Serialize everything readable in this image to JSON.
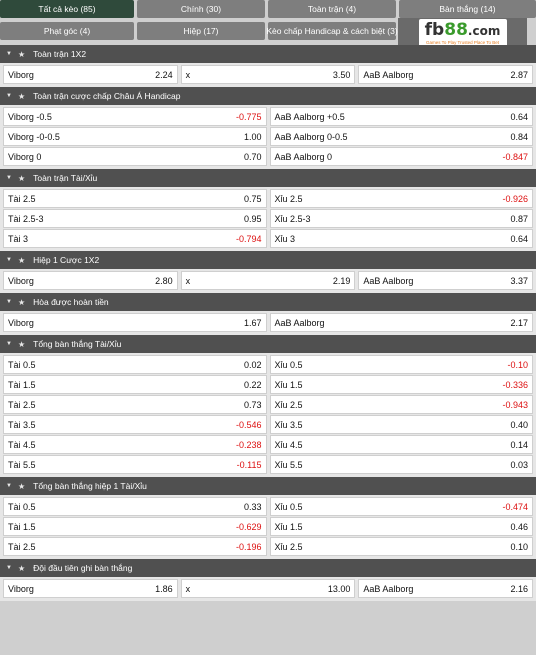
{
  "tabs": [
    {
      "label": "Tất cả kèo (85)",
      "active": true
    },
    {
      "label": "Chính (30)"
    },
    {
      "label": "Toàn trận (4)"
    },
    {
      "label": "Bàn thắng (14)"
    },
    {
      "label": "Phạt góc (4)"
    },
    {
      "label": "Hiệp (17)"
    },
    {
      "label": "Kèo chấp Handicap & cách biệt (3)"
    }
  ],
  "logo": {
    "prefix": "fb",
    "number": "88",
    "domain": ".com",
    "tagline": "Games To Play  Trusted Place To Bet",
    "accent": "#3a9b2c"
  },
  "colors": {
    "negative": "#dd1111",
    "header": "#505050",
    "active_tab": "#2f4a3b",
    "tab": "#7e7e7e"
  },
  "sections": [
    {
      "title": "Toàn trận 1X2",
      "rows": [
        [
          [
            "Viborg",
            "2.24"
          ],
          [
            "x",
            "3.50"
          ],
          [
            "AaB Aalborg",
            "2.87"
          ]
        ]
      ]
    },
    {
      "title": "Toàn trận cược chấp Châu Á Handicap",
      "rows": [
        [
          [
            "Viborg -0.5",
            "-0.775"
          ],
          [
            "AaB Aalborg +0.5",
            "0.64"
          ]
        ],
        [
          [
            "Viborg -0-0.5",
            "1.00"
          ],
          [
            "AaB Aalborg 0-0.5",
            "0.84"
          ]
        ],
        [
          [
            "Viborg 0",
            "0.70"
          ],
          [
            "AaB Aalborg 0",
            "-0.847"
          ]
        ]
      ]
    },
    {
      "title": "Toàn trận Tài/Xỉu",
      "rows": [
        [
          [
            "Tài 2.5",
            "0.75"
          ],
          [
            "Xỉu 2.5",
            "-0.926"
          ]
        ],
        [
          [
            "Tài 2.5-3",
            "0.95"
          ],
          [
            "Xỉu 2.5-3",
            "0.87"
          ]
        ],
        [
          [
            "Tài 3",
            "-0.794"
          ],
          [
            "Xỉu 3",
            "0.64"
          ]
        ]
      ]
    },
    {
      "title": "Hiệp 1 Cược 1X2",
      "rows": [
        [
          [
            "Viborg",
            "2.80"
          ],
          [
            "x",
            "2.19"
          ],
          [
            "AaB Aalborg",
            "3.37"
          ]
        ]
      ]
    },
    {
      "title": "Hòa được hoàn tiền",
      "rows": [
        [
          [
            "Viborg",
            "1.67"
          ],
          [
            "AaB Aalborg",
            "2.17"
          ]
        ]
      ]
    },
    {
      "title": "Tổng bàn thắng Tài/Xỉu",
      "rows": [
        [
          [
            "Tài 0.5",
            "0.02"
          ],
          [
            "Xỉu 0.5",
            "-0.10"
          ]
        ],
        [
          [
            "Tài 1.5",
            "0.22"
          ],
          [
            "Xỉu 1.5",
            "-0.336"
          ]
        ],
        [
          [
            "Tài 2.5",
            "0.73"
          ],
          [
            "Xỉu 2.5",
            "-0.943"
          ]
        ],
        [
          [
            "Tài 3.5",
            "-0.546"
          ],
          [
            "Xỉu 3.5",
            "0.40"
          ]
        ],
        [
          [
            "Tài 4.5",
            "-0.238"
          ],
          [
            "Xỉu 4.5",
            "0.14"
          ]
        ],
        [
          [
            "Tài 5.5",
            "-0.115"
          ],
          [
            "Xỉu 5.5",
            "0.03"
          ]
        ]
      ]
    },
    {
      "title": "Tổng bàn thắng hiệp 1 Tài/Xỉu",
      "rows": [
        [
          [
            "Tài 0.5",
            "0.33"
          ],
          [
            "Xỉu 0.5",
            "-0.474"
          ]
        ],
        [
          [
            "Tài 1.5",
            "-0.629"
          ],
          [
            "Xỉu 1.5",
            "0.46"
          ]
        ],
        [
          [
            "Tài 2.5",
            "-0.196"
          ],
          [
            "Xỉu 2.5",
            "0.10"
          ]
        ]
      ]
    },
    {
      "title": "Đội đầu tiên ghi bàn thắng",
      "rows": [
        [
          [
            "Viborg",
            "1.86"
          ],
          [
            "x",
            "13.00"
          ],
          [
            "AaB Aalborg",
            "2.16"
          ]
        ]
      ]
    }
  ]
}
